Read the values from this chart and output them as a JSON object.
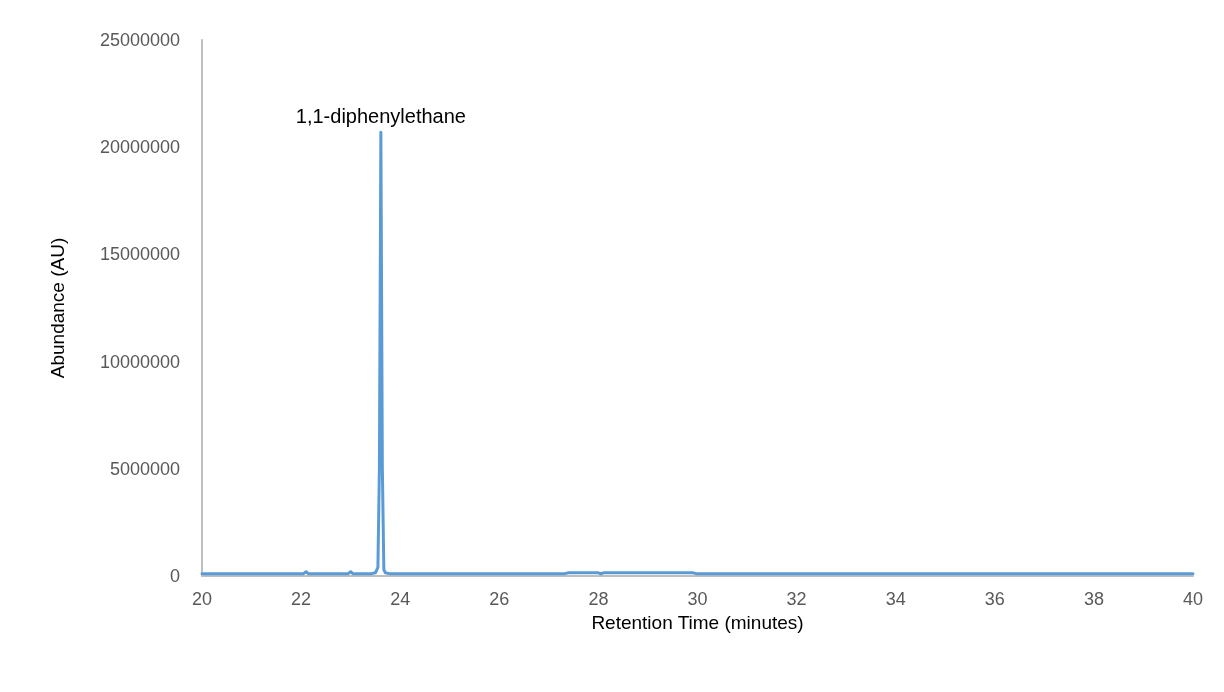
{
  "chart_data": {
    "type": "line",
    "xlabel": "Retention Time (minutes)",
    "ylabel": "Abundance (AU)",
    "annotations": [
      {
        "text": "1,1-diphenylethane",
        "x": 23.61,
        "y": 20700000
      }
    ],
    "x": [
      20,
      21,
      22,
      22.05,
      22.1,
      22.15,
      22.5,
      22.9,
      22.95,
      23,
      23.05,
      23.4,
      23.5,
      23.55,
      23.58,
      23.61,
      23.64,
      23.67,
      23.7,
      23.8,
      24,
      25,
      26,
      27,
      27.3,
      27.4,
      28,
      28.05,
      28.1,
      28.15,
      29,
      29.9,
      30,
      31,
      32,
      34,
      36,
      38,
      40
    ],
    "series": [
      {
        "color": "#5b9bd5",
        "values": [
          100000,
          100000,
          100000,
          110000,
          200000,
          100000,
          100000,
          100000,
          110000,
          200000,
          100000,
          100000,
          150000,
          400000,
          5000000,
          20700000,
          5000000,
          300000,
          150000,
          100000,
          100000,
          100000,
          100000,
          100000,
          100000,
          150000,
          150000,
          100000,
          150000,
          150000,
          150000,
          150000,
          100000,
          100000,
          100000,
          100000,
          100000,
          100000,
          100000
        ]
      }
    ],
    "xlim": [
      20,
      40
    ],
    "xticks": [
      20,
      22,
      24,
      26,
      28,
      30,
      32,
      34,
      36,
      38,
      40
    ],
    "ylim": [
      0,
      25000000
    ],
    "yticks": [
      0,
      5000000,
      10000000,
      15000000,
      20000000,
      25000000
    ],
    "grid": false,
    "marker": "none",
    "line_style": "solid"
  }
}
